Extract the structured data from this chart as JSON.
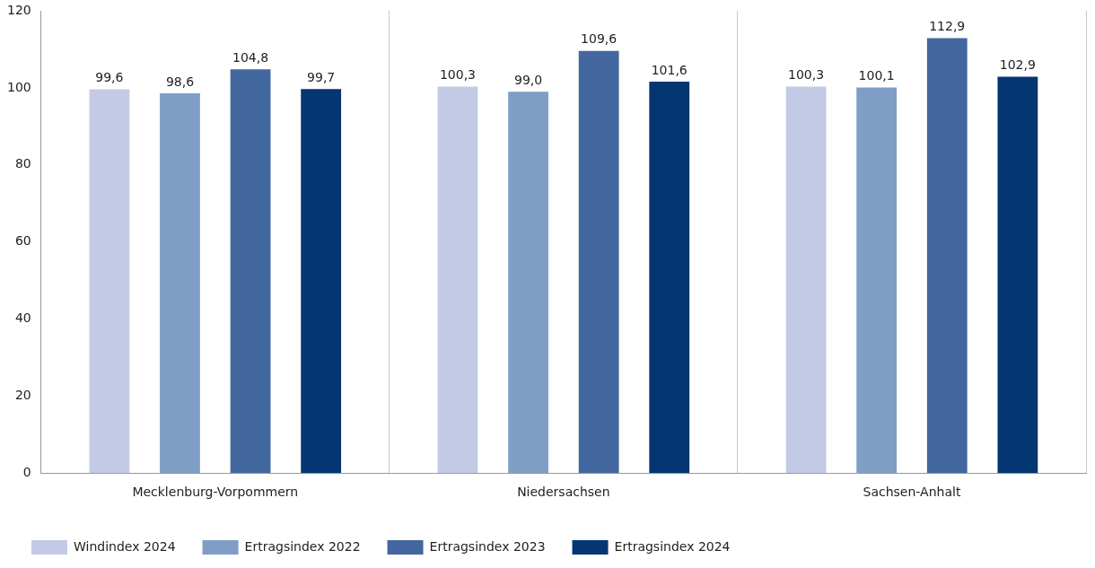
{
  "chart_data": {
    "type": "bar",
    "categories": [
      "Mecklenburg-Vorpommern",
      "Niedersachsen",
      "Sachsen-Anhalt"
    ],
    "series": [
      {
        "name": "Windindex 2024",
        "color": "#c3cae6",
        "values": [
          99.6,
          100.3,
          100.3
        ],
        "value_labels": [
          "99,6",
          "100,3",
          "100,3"
        ]
      },
      {
        "name": "Ertragsindex 2022",
        "color": "#7f9ec5",
        "values": [
          98.6,
          99.0,
          100.1
        ],
        "value_labels": [
          "98,6",
          "99,0",
          "100,1"
        ]
      },
      {
        "name": "Ertragsindex 2023",
        "color": "#43679f",
        "values": [
          104.8,
          109.6,
          112.9
        ],
        "value_labels": [
          "104,8",
          "109,6",
          "112,9"
        ]
      },
      {
        "name": "Ertragsindex 2024",
        "color": "#043673",
        "values": [
          99.7,
          101.6,
          102.9
        ],
        "value_labels": [
          "99,7",
          "101,6",
          "102,9"
        ]
      }
    ],
    "ylim": [
      0,
      120
    ],
    "yticks": [
      0,
      20,
      40,
      60,
      80,
      100,
      120
    ],
    "grid": "x",
    "legend": "bottom"
  }
}
